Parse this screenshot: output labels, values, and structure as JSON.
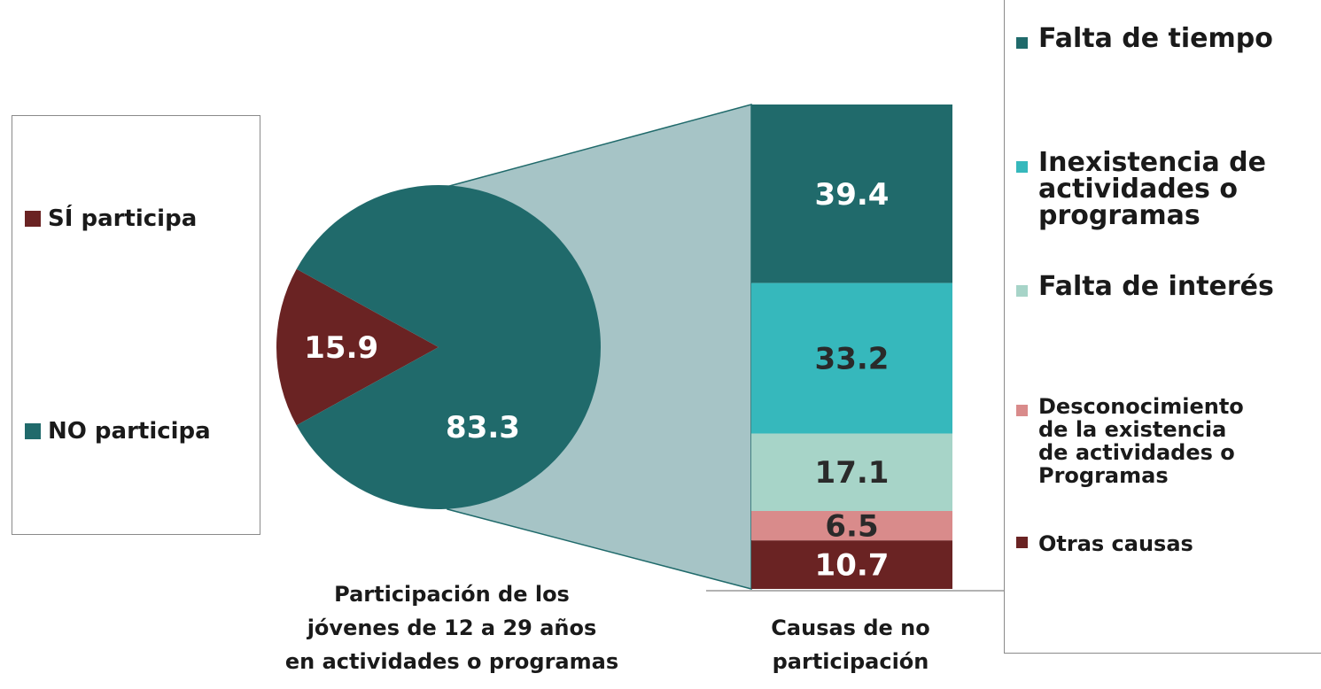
{
  "chart_data": [
    {
      "type": "pie",
      "title": "Participación de los\njóvenes de 12 a 29 años\nen actividades o programas",
      "categories": [
        "SÍ participa",
        "NO participa"
      ],
      "values": [
        15.9,
        83.3
      ],
      "colors": [
        "#6a2323",
        "#206a6b"
      ]
    },
    {
      "type": "stacked-bar",
      "title": "Causas de no\nparticipación",
      "series": [
        {
          "name": "Falta de tiempo",
          "color": "#206a6b",
          "values": [
            39.4
          ]
        },
        {
          "name": "Inexistencia de\nactividades o\nprogramas",
          "color": "#36b8bc",
          "values": [
            33.2
          ]
        },
        {
          "name": "Falta de interés",
          "color": "#a7d4c8",
          "values": [
            17.1
          ]
        },
        {
          "name": "Desconocimiento\nde la existencia\nde actividades  o\nProgramas",
          "color": "#d98b8b",
          "values": [
            6.5
          ]
        },
        {
          "name": "Otras  causas",
          "color": "#6a2323",
          "values": [
            10.7
          ]
        }
      ]
    }
  ]
}
